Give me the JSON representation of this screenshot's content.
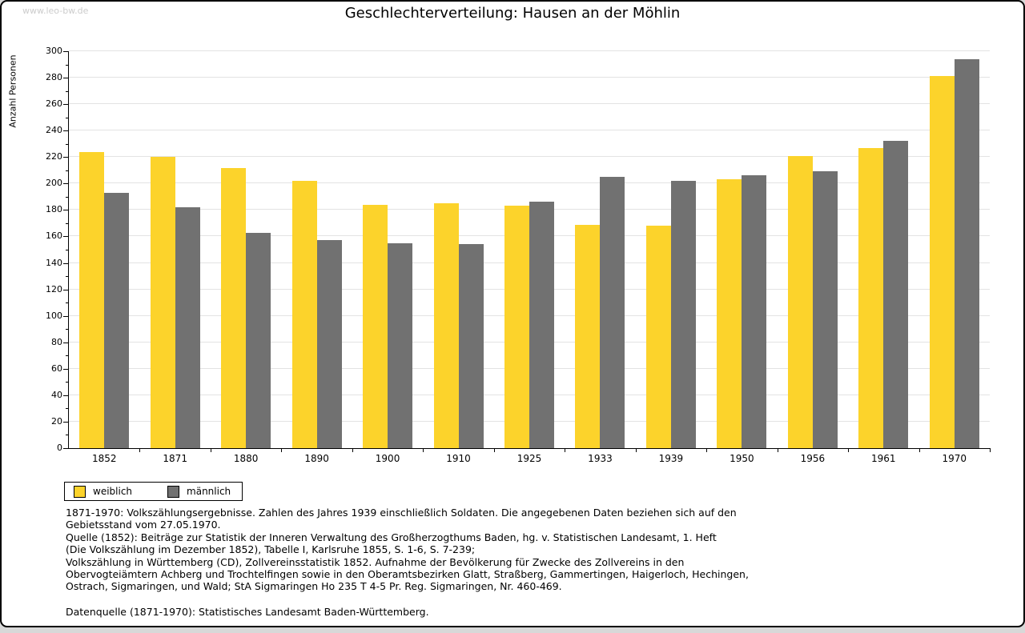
{
  "page": {
    "watermark": "www.leo-bw.de"
  },
  "chart_data": {
    "type": "bar",
    "title": "Geschlechterverteilung: Hausen an der Möhlin",
    "xlabel": "",
    "ylabel": "Anzahl Personen",
    "ylim": [
      0,
      300
    ],
    "ytick_step": 20,
    "ytick_minor_step": 10,
    "grid": true,
    "grid_color": "#e3e3e3",
    "axis_color": "#000000",
    "legend_position": "bottom-left",
    "categories": [
      "1852",
      "1871",
      "1880",
      "1890",
      "1900",
      "1910",
      "1925",
      "1933",
      "1939",
      "1950",
      "1956",
      "1961",
      "1970"
    ],
    "series": [
      {
        "name": "weiblich",
        "color": "#fcd32b",
        "values": [
          224,
          220,
          212,
          202,
          184,
          185,
          183,
          169,
          168,
          203,
          221,
          227,
          281
        ]
      },
      {
        "name": "männlich",
        "color": "#717171",
        "values": [
          193,
          182,
          163,
          157,
          155,
          154,
          186,
          205,
          202,
          206,
          209,
          232,
          294
        ]
      }
    ]
  },
  "footnotes": {
    "block": [
      "1871-1970: Volkszählungsergebnisse. Zahlen des Jahres 1939 einschließlich Soldaten. Die angegebenen Daten beziehen sich auf den",
      "Gebietsstand vom 27.05.1970.",
      "Quelle (1852): Beiträge zur Statistik der Inneren Verwaltung des Großherzogthums Baden, hg. v. Statistischen Landesamt, 1. Heft",
      "(Die Volkszählung im Dezember 1852), Tabelle I, Karlsruhe 1855, S. 1-6, S. 7-239;",
      "Volkszählung in Württemberg (CD), Zollvereinsstatistik 1852. Aufnahme der Bevölkerung für Zwecke des Zollvereins in den",
      "Obervogteiämtern Achberg und Trochtelfingen sowie in den Oberamtsbezirken Glatt, Straßberg, Gammertingen, Haigerloch, Hechingen,",
      "Ostrach, Sigmaringen, und Wald; StA Sigmaringen Ho 235 T 4-5 Pr. Reg. Sigmaringen, Nr. 460-469."
    ],
    "source": "Datenquelle (1871-1970): Statistisches Landesamt Baden-Württemberg."
  }
}
